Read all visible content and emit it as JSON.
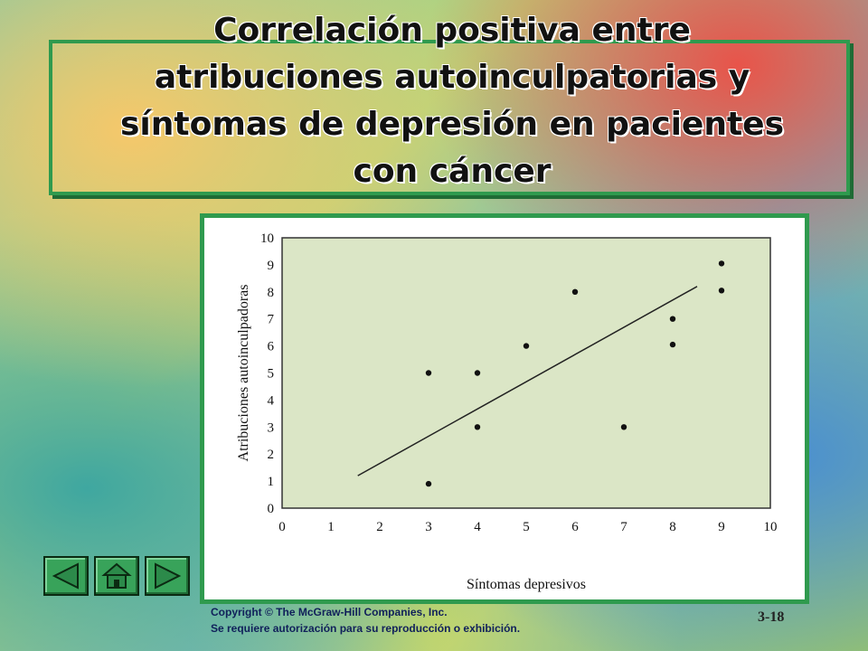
{
  "slide": {
    "title_lines": [
      "Correlación positiva entre",
      "atribuciones autoinculpatorias y",
      "síntomas de depresión en pacientes",
      "con cáncer"
    ],
    "copyright_line1": "Copyright © The McGraw-Hill Companies, Inc.",
    "copyright_line2": "Se requiere autorización para su reproducción o exhibición.",
    "slide_number": "3-18",
    "accent_color": "#2f9a4e"
  },
  "nav": {
    "prev_icon": "left-triangle-icon",
    "home_icon": "home-icon",
    "next_icon": "right-triangle-icon"
  },
  "chart_data": {
    "type": "scatter",
    "xlabel": "Síntomas depresivos",
    "ylabel": "Atribuciones autoinculpadoras",
    "xlim": [
      0,
      10
    ],
    "ylim": [
      0,
      10
    ],
    "xticks": [
      "0",
      "1",
      "2",
      "3",
      "4",
      "5",
      "6",
      "7",
      "8",
      "9",
      "10"
    ],
    "yticks": [
      "0",
      "1",
      "2",
      "3",
      "4",
      "5",
      "6",
      "7",
      "8",
      "9",
      "10"
    ],
    "points": [
      {
        "x": 3,
        "y": 5
      },
      {
        "x": 3,
        "y": 0.9
      },
      {
        "x": 4,
        "y": 5
      },
      {
        "x": 4,
        "y": 3
      },
      {
        "x": 5,
        "y": 6
      },
      {
        "x": 6,
        "y": 8
      },
      {
        "x": 7,
        "y": 3
      },
      {
        "x": 8,
        "y": 7
      },
      {
        "x": 8,
        "y": 6.05
      },
      {
        "x": 9,
        "y": 9.05
      },
      {
        "x": 9,
        "y": 8.05
      }
    ],
    "trendline": [
      {
        "x": 1.55,
        "y": 1.2
      },
      {
        "x": 8.5,
        "y": 8.2
      }
    ],
    "plot_background": "#dbe6c6",
    "grid": false
  }
}
